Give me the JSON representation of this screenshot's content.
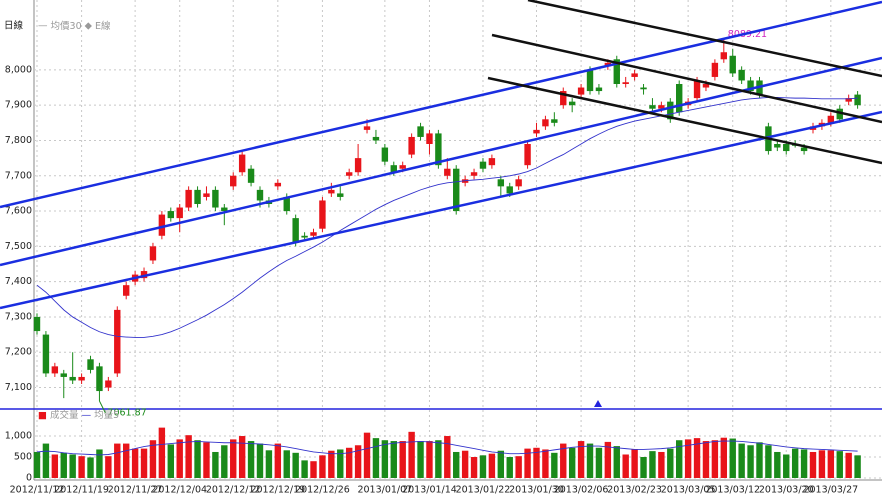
{
  "chart_data": {
    "type": "candlestick",
    "title": "日線",
    "price_legend": [
      "均價30",
      "E線"
    ],
    "volume_legend": [
      "成交量",
      "均量5"
    ],
    "up_color": "#e8141a",
    "down_color": "#1a8a1a",
    "ma_color": "#3333cc",
    "grid": true,
    "categories": [
      "2012/11/12",
      null,
      null,
      null,
      null,
      "2012/11/19",
      null,
      null,
      null,
      null,
      null,
      "2012/11/27",
      null,
      null,
      null,
      null,
      "2012/12/04",
      null,
      null,
      null,
      null,
      null,
      "2012/12/12",
      null,
      null,
      null,
      null,
      "2012/12/19",
      null,
      null,
      null,
      null,
      "2012/12/26",
      null,
      null,
      null,
      null,
      null,
      null,
      "2013/01/07",
      null,
      null,
      null,
      null,
      "2013/01/14",
      null,
      null,
      null,
      null,
      null,
      "2013/01/22",
      null,
      null,
      null,
      null,
      null,
      "2013/01/30",
      null,
      null,
      null,
      null,
      "2013/02/06",
      null,
      null,
      null,
      null,
      null,
      "2013/02/23",
      null,
      null,
      null,
      null,
      null,
      "2013/03/05",
      null,
      null,
      null,
      null,
      "2013/03/12",
      null,
      null,
      null,
      null,
      null,
      "2013/03/20",
      null,
      null,
      null,
      null,
      "2013/03/27",
      null,
      null,
      null
    ],
    "open": [
      7300,
      7250,
      7140,
      7140,
      7130,
      7120,
      7180,
      7160,
      7100,
      7140,
      7360,
      7400,
      7410,
      7460,
      7530,
      7600,
      7580,
      7610,
      7660,
      7640,
      7660,
      7610,
      7670,
      7710,
      7720,
      7660,
      7630,
      7670,
      7640,
      7580,
      7530,
      7530,
      7550,
      7650,
      7650,
      7700,
      7710,
      7830,
      7810,
      7780,
      7730,
      7720,
      7760,
      7840,
      7790,
      7820,
      7700,
      7720,
      7680,
      7700,
      7740,
      7730,
      7690,
      7670,
      7670,
      7730,
      7820,
      7840,
      7860,
      7900,
      7910,
      7930,
      8000,
      7950,
      8010,
      8030,
      7960,
      7980,
      7950,
      7900,
      7890,
      7910,
      7960,
      7900,
      7920,
      7950,
      7980,
      8030,
      8040,
      8000,
      7970,
      7970,
      7840,
      7790,
      7790,
      7790,
      7780,
      7830,
      7840,
      7850,
      7890,
      7910,
      7930
    ],
    "high": [
      7310,
      7260,
      7170,
      7150,
      7200,
      7140,
      7190,
      7170,
      7130,
      7330,
      7400,
      7430,
      7440,
      7510,
      7600,
      7610,
      7620,
      7670,
      7670,
      7670,
      7670,
      7620,
      7710,
      7770,
      7730,
      7670,
      7640,
      7690,
      7650,
      7590,
      7540,
      7550,
      7640,
      7680,
      7670,
      7720,
      7790,
      7860,
      7830,
      7790,
      7740,
      7740,
      7820,
      7850,
      7830,
      7830,
      7750,
      7730,
      7700,
      7720,
      7750,
      7760,
      7700,
      7680,
      7700,
      7800,
      7850,
      7870,
      7880,
      7950,
      7920,
      7960,
      8010,
      7960,
      8030,
      8040,
      7980,
      8000,
      7960,
      7920,
      7910,
      7920,
      7970,
      7920,
      7980,
      7970,
      8030,
      8089.21,
      8060,
      8010,
      7980,
      7980,
      7850,
      7800,
      7800,
      7800,
      7790,
      7850,
      7860,
      7880,
      7900,
      7930,
      7940
    ],
    "low": [
      7250,
      7130,
      7130,
      7070,
      7110,
      7110,
      7140,
      7061.87,
      7090,
      7130,
      7350,
      7390,
      7400,
      7450,
      7520,
      7570,
      7540,
      7600,
      7610,
      7630,
      7600,
      7560,
      7660,
      7700,
      7670,
      7610,
      7610,
      7660,
      7590,
      7500,
      7520,
      7520,
      7540,
      7640,
      7630,
      7690,
      7700,
      7820,
      7790,
      7730,
      7700,
      7710,
      7750,
      7800,
      7760,
      7720,
      7690,
      7590,
      7670,
      7690,
      7710,
      7720,
      7640,
      7640,
      7660,
      7720,
      7810,
      7830,
      7840,
      7890,
      7880,
      7920,
      7930,
      7930,
      8000,
      7950,
      7950,
      7970,
      7930,
      7880,
      7880,
      7850,
      7870,
      7890,
      7910,
      7940,
      7970,
      8020,
      7980,
      7960,
      7930,
      7920,
      7760,
      7770,
      7760,
      7780,
      7760,
      7820,
      7830,
      7840,
      7850,
      7900,
      7890
    ],
    "close": [
      7260,
      7140,
      7160,
      7130,
      7120,
      7130,
      7150,
      7090,
      7120,
      7320,
      7390,
      7420,
      7430,
      7500,
      7590,
      7580,
      7610,
      7660,
      7620,
      7650,
      7610,
      7600,
      7700,
      7760,
      7680,
      7630,
      7620,
      7680,
      7600,
      7510,
      7525,
      7540,
      7630,
      7660,
      7640,
      7710,
      7750,
      7840,
      7800,
      7740,
      7710,
      7730,
      7810,
      7810,
      7820,
      7730,
      7720,
      7600,
      7690,
      7710,
      7720,
      7750,
      7670,
      7650,
      7690,
      7790,
      7830,
      7860,
      7850,
      7940,
      7900,
      7950,
      7940,
      7940,
      8020,
      7960,
      7965,
      7990,
      7945,
      7890,
      7900,
      7860,
      7880,
      7910,
      7970,
      7960,
      8020,
      8050,
      7990,
      7970,
      7940,
      7930,
      7770,
      7780,
      7770,
      7785,
      7770,
      7840,
      7850,
      7870,
      7860,
      7920,
      7900
    ],
    "volume": [
      620,
      820,
      560,
      600,
      560,
      520,
      490,
      680,
      520,
      820,
      820,
      700,
      700,
      900,
      1200,
      800,
      920,
      1020,
      900,
      850,
      620,
      780,
      920,
      1000,
      880,
      820,
      660,
      820,
      660,
      600,
      420,
      400,
      540,
      650,
      680,
      720,
      780,
      1080,
      950,
      900,
      880,
      880,
      1100,
      880,
      880,
      900,
      1000,
      620,
      650,
      500,
      540,
      580,
      650,
      500,
      520,
      700,
      720,
      680,
      600,
      820,
      720,
      880,
      820,
      720,
      860,
      760,
      560,
      680,
      500,
      640,
      620,
      700,
      900,
      920,
      950,
      880,
      900,
      960,
      940,
      820,
      780,
      850,
      780,
      620,
      560,
      700,
      680,
      620,
      660,
      660,
      640,
      600,
      540
    ],
    "ma": [
      7390,
      7370,
      7345,
      7320,
      7300,
      7285,
      7270,
      7258,
      7250,
      7245,
      7243,
      7242,
      7242,
      7245,
      7250,
      7258,
      7268,
      7280,
      7292,
      7305,
      7320,
      7335,
      7352,
      7370,
      7390,
      7410,
      7428,
      7445,
      7460,
      7472,
      7485,
      7498,
      7512,
      7528,
      7545,
      7560,
      7575,
      7590,
      7605,
      7618,
      7630,
      7640,
      7650,
      7660,
      7668,
      7675,
      7680,
      7683,
      7686,
      7688,
      7690,
      7693,
      7696,
      7700,
      7705,
      7712,
      7722,
      7735,
      7748,
      7760,
      7775,
      7790,
      7805,
      7818,
      7830,
      7840,
      7848,
      7855,
      7860,
      7865,
      7870,
      7875,
      7880,
      7885,
      7890,
      7895,
      7900,
      7905,
      7910,
      7915,
      7918,
      7920,
      7922,
      7922,
      7921,
      7920,
      7920,
      7919,
      7918,
      7918,
      7918,
      7918,
      7920
    ],
    "volume_ma": [
      620,
      640,
      630,
      600,
      580,
      570,
      560,
      550,
      560,
      600,
      650,
      700,
      750,
      780,
      800,
      820,
      840,
      860,
      870,
      860,
      850,
      840,
      840,
      830,
      820,
      810,
      790,
      770,
      740,
      700,
      660,
      620,
      600,
      580,
      580,
      600,
      650,
      700,
      750,
      800,
      830,
      850,
      860,
      870,
      860,
      840,
      820,
      780,
      740,
      700,
      660,
      620,
      600,
      580,
      580,
      590,
      610,
      640,
      670,
      700,
      730,
      750,
      760,
      760,
      740,
      720,
      700,
      680,
      680,
      690,
      700,
      720,
      750,
      780,
      810,
      840,
      870,
      880,
      880,
      870,
      850,
      830,
      800,
      770,
      740,
      720,
      700,
      690,
      680,
      670,
      660,
      650,
      640
    ],
    "ylim": [
      7042,
      8198
    ],
    "yticks": [
      {
        "value": 7100,
        "label": "7,100"
      },
      {
        "value": 7200,
        "label": "7,200"
      },
      {
        "value": 7300,
        "label": "7,300"
      },
      {
        "value": 7400,
        "label": "7,400"
      },
      {
        "value": 7500,
        "label": "7,500"
      },
      {
        "value": 7600,
        "label": "7,600"
      },
      {
        "value": 7700,
        "label": "7,700"
      },
      {
        "value": 7800,
        "label": "7,800"
      },
      {
        "value": 7900,
        "label": "7,900"
      },
      {
        "value": 8000,
        "label": "8,000"
      }
    ],
    "volume_lim": [
      0,
      1620
    ],
    "volume_ticks": [
      0,
      500,
      {
        "value": 1000,
        "label": "1,000"
      }
    ]
  }
}
